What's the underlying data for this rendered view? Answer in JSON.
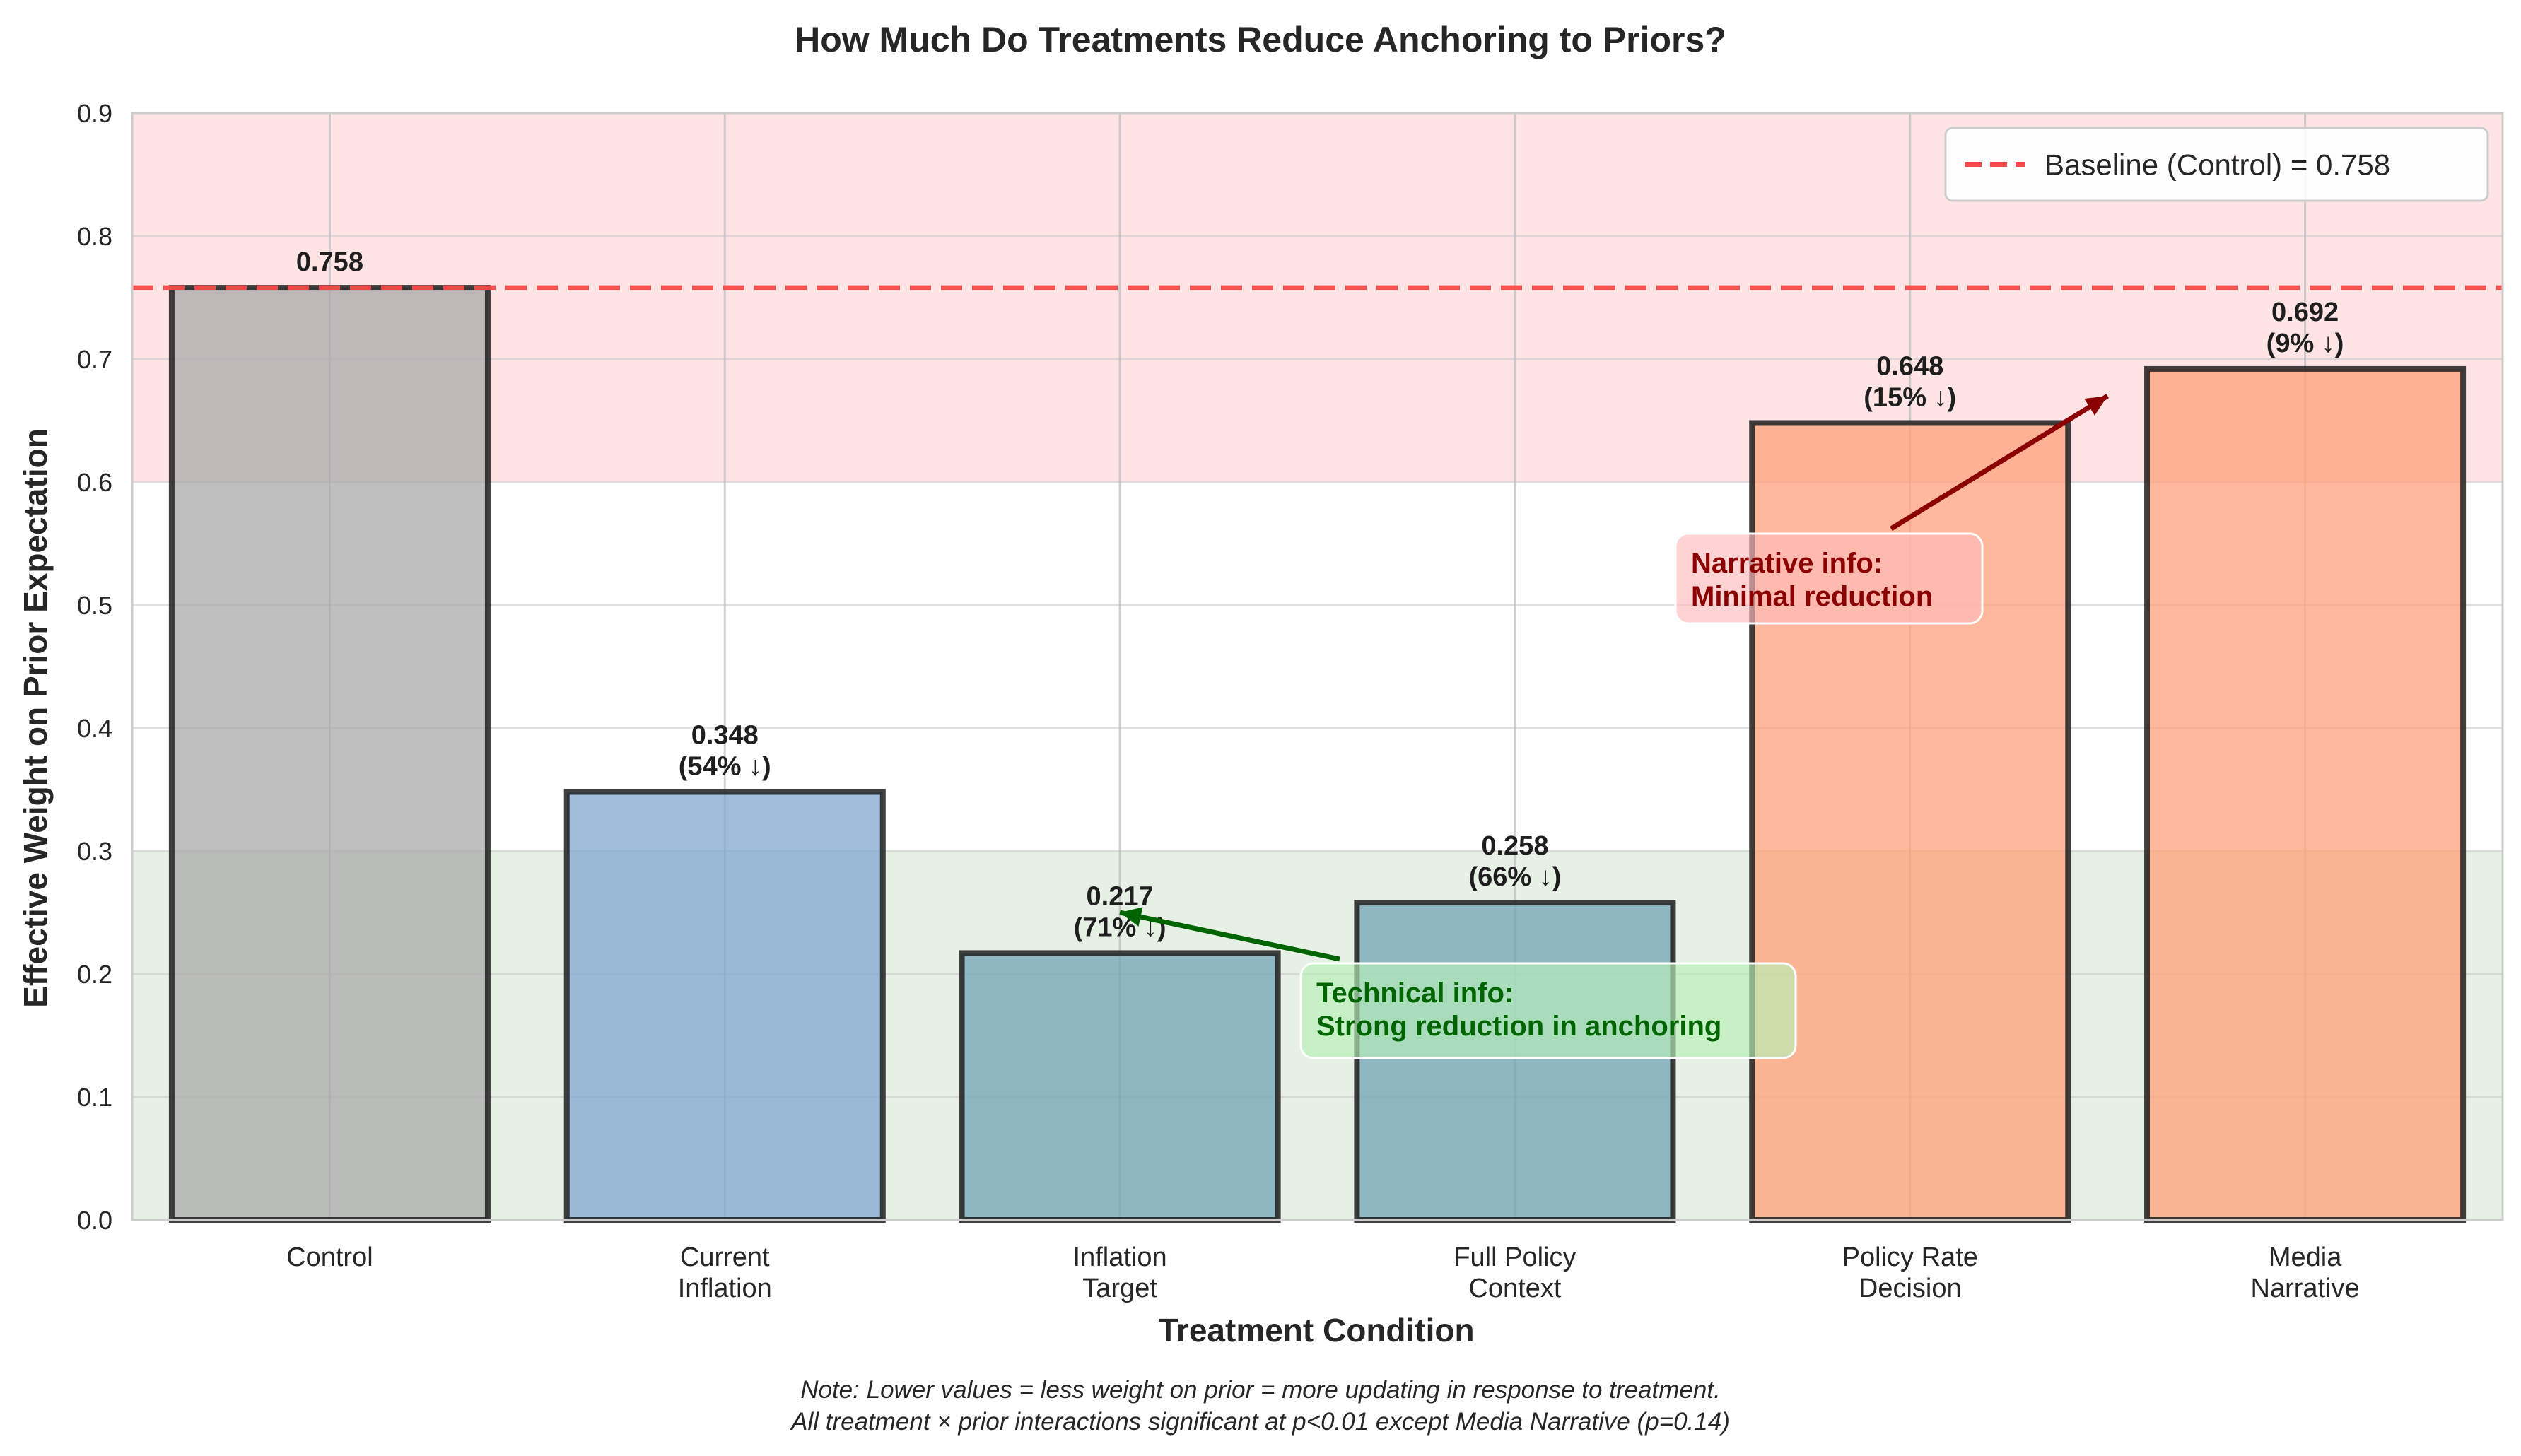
{
  "chart_data": {
    "type": "bar",
    "title": "How Much Do Treatments Reduce Anchoring to Priors?",
    "xlabel": "Treatment Condition",
    "ylabel": "Effective Weight on Prior Expectation",
    "ylim": [
      0,
      0.9
    ],
    "yticks": [
      "0.0",
      "0.1",
      "0.2",
      "0.3",
      "0.4",
      "0.5",
      "0.6",
      "0.7",
      "0.8",
      "0.9"
    ],
    "grid": true,
    "categories": [
      [
        "Control"
      ],
      [
        "Current",
        "Inflation"
      ],
      [
        "Inflation",
        "Target"
      ],
      [
        "Full Policy",
        "Context"
      ],
      [
        "Policy Rate",
        "Decision"
      ],
      [
        "Media",
        "Narrative"
      ]
    ],
    "values": [
      0.758,
      0.348,
      0.217,
      0.258,
      0.648,
      0.692
    ],
    "value_labels": [
      [
        "0.758"
      ],
      [
        "0.348",
        "(54% ↓)"
      ],
      [
        "0.217",
        "(71% ↓)"
      ],
      [
        "0.258",
        "(66% ↓)"
      ],
      [
        "0.648",
        "(15% ↓)"
      ],
      [
        "0.692",
        "(9% ↓)"
      ]
    ],
    "bar_colors": [
      "#a9a9a9",
      "#7fa7cf",
      "#72a4b5",
      "#72a4b5",
      "#ffa07a",
      "#ffa07a"
    ],
    "regions": [
      {
        "from": 0.6,
        "to": 0.9,
        "color": "#ffe4e6"
      },
      {
        "from": 0.0,
        "to": 0.3,
        "color": "#e6f0e4"
      }
    ],
    "baseline": {
      "value": 0.758,
      "label": "Baseline (Control) = 0.758",
      "color": "#f44a4a"
    },
    "legend_position": "top-right",
    "annotations": [
      {
        "lines": [
          "Technical info:",
          "Strong reduction in anchoring"
        ],
        "text_color": "#006400",
        "box_color": "#b7f0b7",
        "arrow_to_category": 2,
        "arrow_to_y": 0.25
      },
      {
        "lines": [
          "Narrative info:",
          "Minimal reduction"
        ],
        "text_color": "#8b0000",
        "box_color": "#ffbcbc",
        "arrow_to_category": 4.5,
        "arrow_to_y": 0.67
      }
    ],
    "note": [
      "Note: Lower values = less weight on prior = more updating in response to treatment.",
      "All treatment × prior interactions significant at p<0.01 except Media Narrative (p=0.14)"
    ]
  }
}
